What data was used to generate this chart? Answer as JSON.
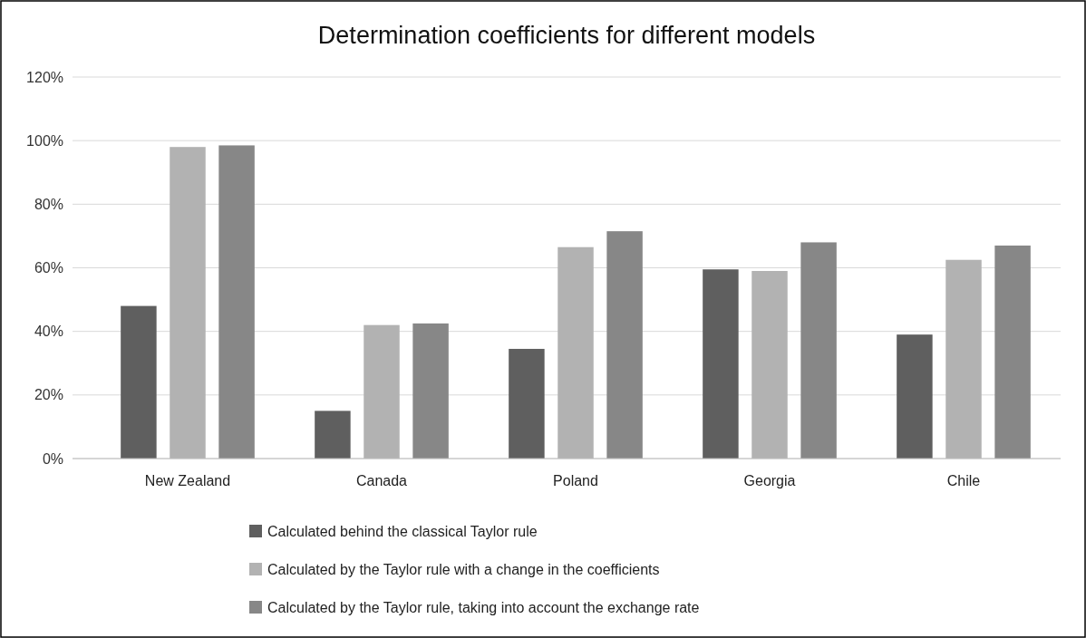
{
  "chart_data": {
    "type": "bar",
    "title": "Determination coefficients for different models",
    "categories": [
      "New Zealand",
      "Canada",
      "Poland",
      "Georgia",
      "Chile"
    ],
    "series": [
      {
        "name": "Calculated behind the classical Taylor rule",
        "color": "#5f5f5f",
        "values": [
          48,
          15,
          34.5,
          59.5,
          39
        ]
      },
      {
        "name": "Calculated by the Taylor rule with a change in the coefficients",
        "color": "#b2b2b2",
        "values": [
          98,
          42,
          66.5,
          59,
          62.5
        ]
      },
      {
        "name": "Calculated by the Taylor rule, taking into account the exchange rate",
        "color": "#878787",
        "values": [
          98.5,
          42.5,
          71.5,
          68,
          67
        ]
      }
    ],
    "ylim": [
      0,
      120
    ],
    "yticks": [
      {
        "value": 0,
        "label": "0%"
      },
      {
        "value": 20,
        "label": "20%"
      },
      {
        "value": 40,
        "label": "40%"
      },
      {
        "value": 60,
        "label": "60%"
      },
      {
        "value": 80,
        "label": "80%"
      },
      {
        "value": 100,
        "label": "100%"
      },
      {
        "value": 120,
        "label": "120%"
      }
    ],
    "grid": "y",
    "legend": "bottom"
  }
}
